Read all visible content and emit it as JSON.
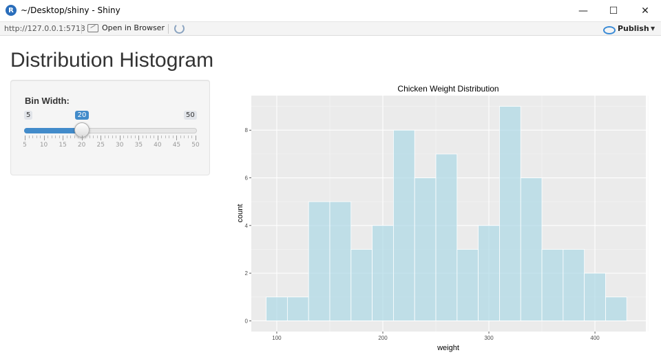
{
  "window": {
    "title": "~/Desktop/shiny - Shiny",
    "app_icon_letter": "R",
    "minimize": "—",
    "maximize": "☐",
    "close": "✕"
  },
  "toolbar": {
    "url": "http://127.0.0.1:5713",
    "open_in_browser": "Open in Browser",
    "publish": "Publish",
    "publish_caret": "▼"
  },
  "page": {
    "title": "Distribution Histogram"
  },
  "slider": {
    "label": "Bin Width:",
    "min": 5,
    "max": 50,
    "value": 20,
    "step": 1,
    "min_label": "5",
    "max_label": "50",
    "value_label": "20",
    "tick_labels": [
      "5",
      "10",
      "15",
      "20",
      "25",
      "30",
      "35",
      "40",
      "45",
      "50"
    ]
  },
  "colors": {
    "accent": "#428bca",
    "bar_fill": "#add8e6",
    "panel_bg": "#ebebeb"
  },
  "chart_data": {
    "type": "bar",
    "title": "Chicken Weight Distribution",
    "xlabel": "weight",
    "ylabel": "count",
    "bin_width": 20,
    "bins": [
      {
        "from": 90,
        "to": 110,
        "count": 1
      },
      {
        "from": 110,
        "to": 130,
        "count": 1
      },
      {
        "from": 130,
        "to": 150,
        "count": 5
      },
      {
        "from": 150,
        "to": 170,
        "count": 5
      },
      {
        "from": 170,
        "to": 190,
        "count": 3
      },
      {
        "from": 190,
        "to": 210,
        "count": 4
      },
      {
        "from": 210,
        "to": 230,
        "count": 8
      },
      {
        "from": 230,
        "to": 250,
        "count": 6
      },
      {
        "from": 250,
        "to": 270,
        "count": 7
      },
      {
        "from": 270,
        "to": 290,
        "count": 3
      },
      {
        "from": 290,
        "to": 310,
        "count": 4
      },
      {
        "from": 310,
        "to": 330,
        "count": 9
      },
      {
        "from": 330,
        "to": 350,
        "count": 6
      },
      {
        "from": 350,
        "to": 370,
        "count": 3
      },
      {
        "from": 370,
        "to": 390,
        "count": 3
      },
      {
        "from": 390,
        "to": 410,
        "count": 2
      },
      {
        "from": 410,
        "to": 430,
        "count": 1
      }
    ],
    "xlim": [
      76,
      448
    ],
    "ylim": [
      -0.45,
      9.45
    ],
    "x_ticks": [
      100,
      200,
      300,
      400
    ],
    "x_tick_labels": [
      "100",
      "200",
      "300",
      "400"
    ],
    "y_ticks": [
      0,
      2,
      4,
      6,
      8
    ],
    "y_tick_labels": [
      "0",
      "2",
      "4",
      "6",
      "8"
    ],
    "grid": true,
    "legend": "none"
  }
}
